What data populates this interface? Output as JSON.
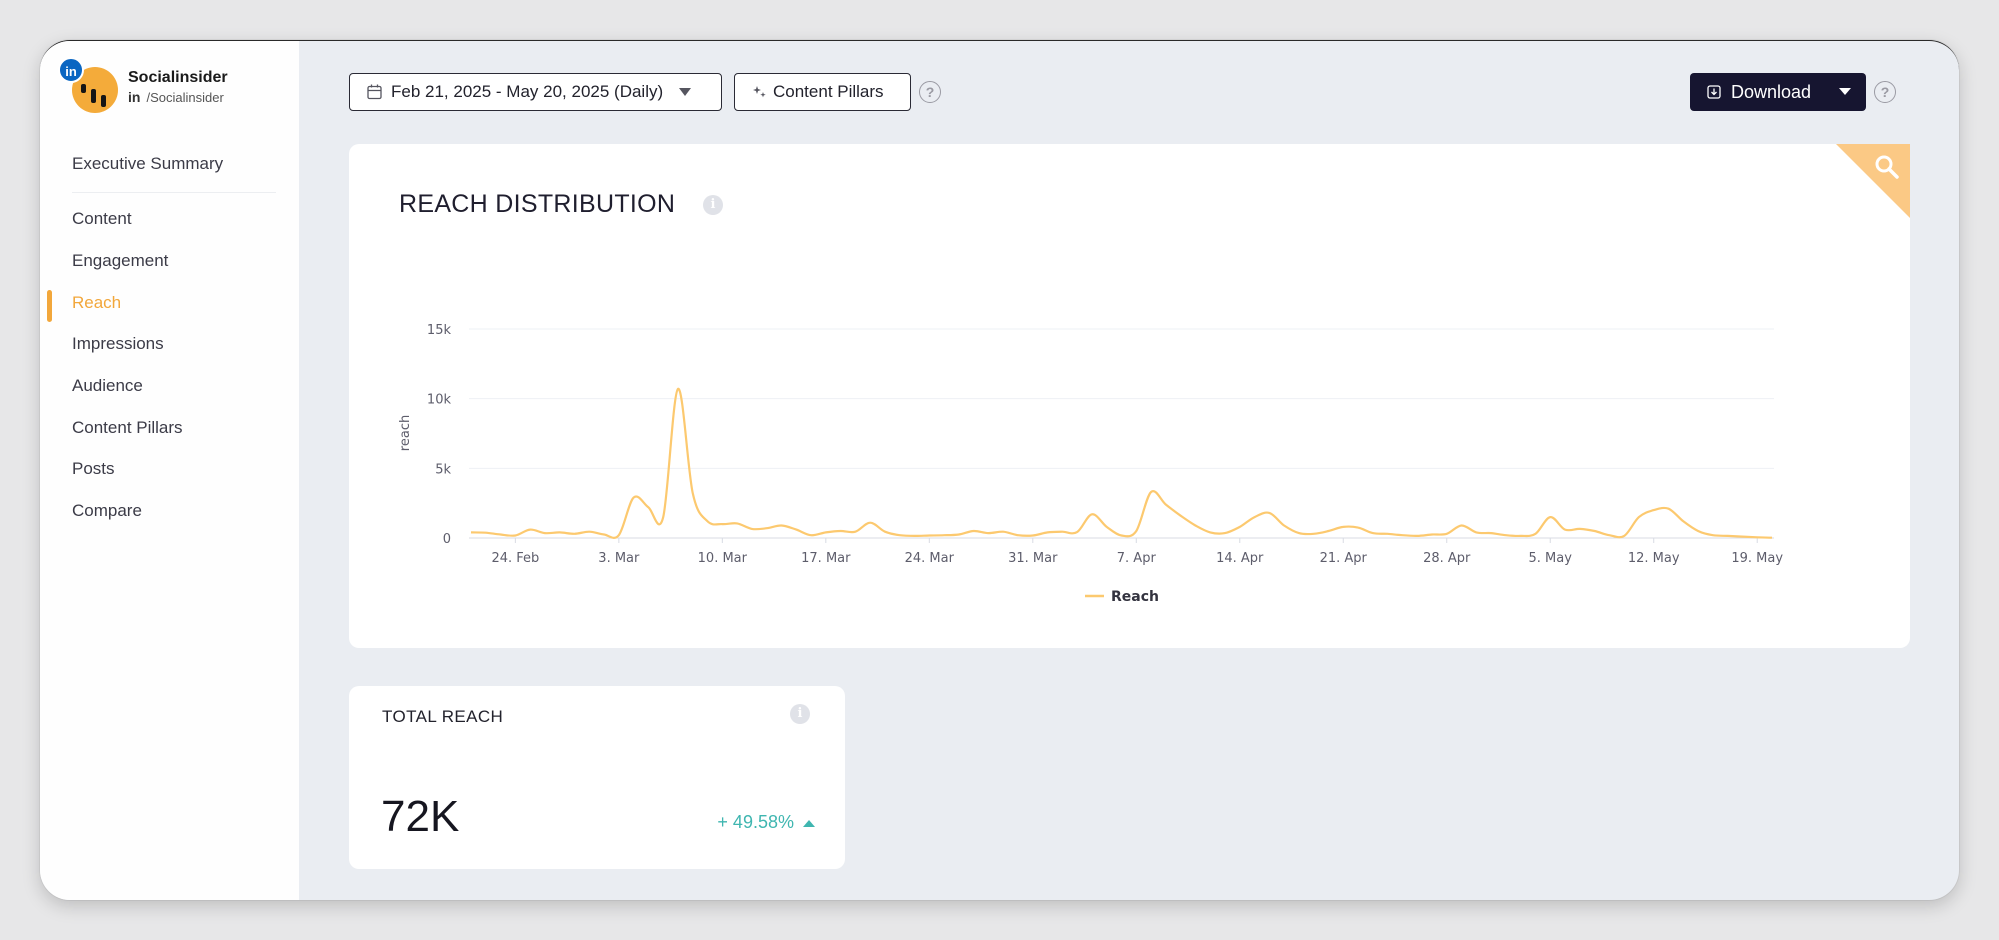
{
  "profile": {
    "name": "Socialinsider",
    "network_abbr": "in",
    "handle": "/Socialinsider",
    "badge": "in"
  },
  "sidebar": {
    "items": [
      {
        "label": "Executive Summary"
      },
      {
        "label": "Content"
      },
      {
        "label": "Engagement"
      },
      {
        "label": "Reach",
        "active": true
      },
      {
        "label": "Impressions"
      },
      {
        "label": "Audience"
      },
      {
        "label": "Content Pillars"
      },
      {
        "label": "Posts"
      },
      {
        "label": "Compare"
      }
    ]
  },
  "toolbar": {
    "date_range": "Feb 21, 2025 - May 20, 2025 (Daily)",
    "content_pillars_label": "Content Pillars",
    "download_label": "Download",
    "help_symbol": "?"
  },
  "reach_chart": {
    "title": "REACH DISTRIBUTION",
    "info_symbol": "i"
  },
  "chart_data": {
    "type": "line",
    "title": "REACH DISTRIBUTION",
    "xlabel": "",
    "ylabel": "reach",
    "ylim": [
      0,
      15000
    ],
    "yticks": [
      0,
      5000,
      10000,
      15000
    ],
    "ytick_labels": [
      "0",
      "5k",
      "10k",
      "15k"
    ],
    "xtick_labels": [
      "24. Feb",
      "3. Mar",
      "10. Mar",
      "17. Mar",
      "24. Mar",
      "31. Mar",
      "7. Apr",
      "14. Apr",
      "21. Apr",
      "28. Apr",
      "5. May",
      "12. May",
      "19. May"
    ],
    "xtick_days": [
      3,
      10,
      17,
      24,
      31,
      38,
      45,
      52,
      59,
      66,
      73,
      80,
      87
    ],
    "legend_position": "bottom-center",
    "series": [
      {
        "name": "Reach",
        "color": "#fcc96f",
        "x_days": [
          0,
          1,
          2,
          3,
          4,
          5,
          6,
          7,
          8,
          9,
          10,
          11,
          12,
          13,
          14,
          15,
          16,
          17,
          18,
          19,
          20,
          21,
          22,
          23,
          24,
          25,
          26,
          27,
          28,
          29,
          30,
          31,
          32,
          33,
          34,
          35,
          36,
          37,
          38,
          39,
          40,
          41,
          42,
          43,
          44,
          45,
          46,
          47,
          48,
          49,
          50,
          51,
          52,
          53,
          54,
          55,
          56,
          57,
          58,
          59,
          60,
          61,
          62,
          63,
          64,
          65,
          66,
          67,
          68,
          69,
          70,
          71,
          72,
          73,
          74,
          75,
          76,
          77,
          78,
          79,
          80,
          81,
          82,
          83,
          84,
          85,
          86,
          87,
          88
        ],
        "values": [
          400,
          380,
          250,
          180,
          600,
          350,
          400,
          300,
          450,
          250,
          200,
          2900,
          2200,
          1500,
          10700,
          3200,
          1200,
          1000,
          1050,
          650,
          700,
          900,
          600,
          200,
          400,
          500,
          450,
          1100,
          450,
          200,
          150,
          180,
          200,
          250,
          500,
          350,
          450,
          200,
          180,
          400,
          450,
          420,
          1700,
          800,
          180,
          500,
          3300,
          2400,
          1600,
          900,
          400,
          350,
          800,
          1500,
          1800,
          900,
          350,
          300,
          500,
          800,
          750,
          350,
          300,
          200,
          150,
          250,
          300,
          900,
          400,
          350,
          200,
          150,
          300,
          1500,
          600,
          650,
          500,
          200,
          150,
          1500,
          2000,
          2100,
          1200,
          500,
          200,
          150,
          100,
          50,
          20
        ]
      }
    ]
  },
  "total_reach": {
    "label": "TOTAL REACH",
    "value": "72K",
    "change": "+ 49.58%",
    "info_symbol": "i"
  }
}
